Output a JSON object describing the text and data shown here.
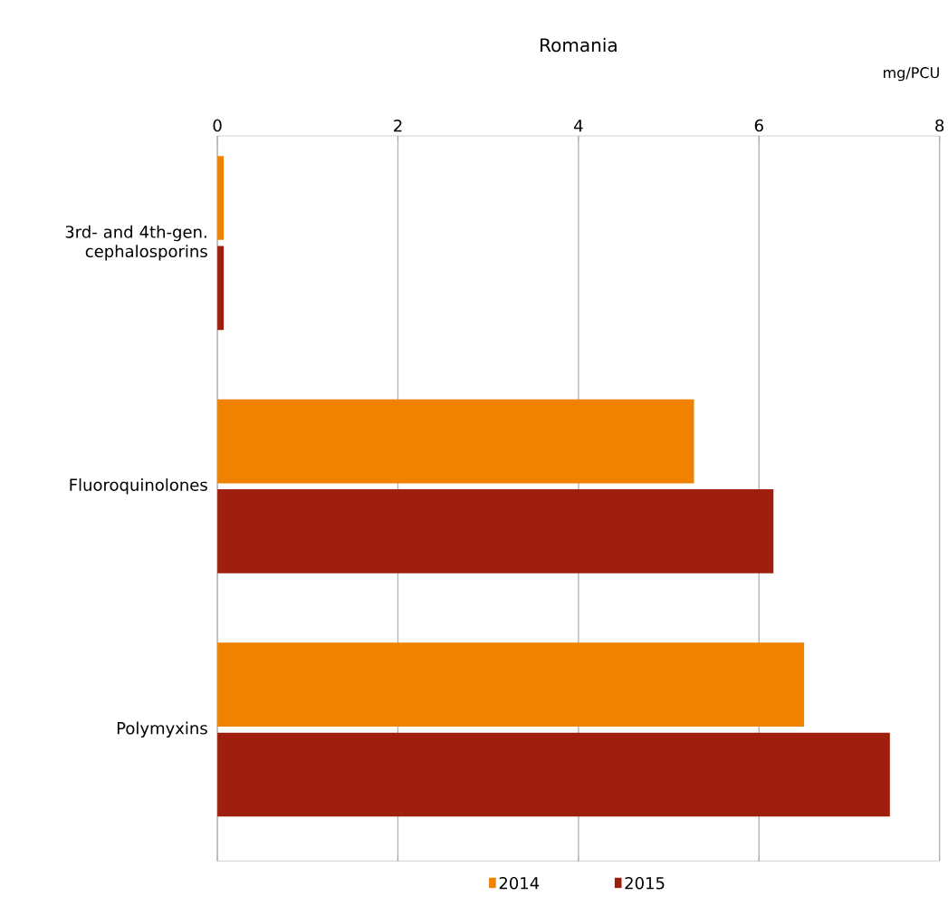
{
  "chart_data": {
    "type": "bar",
    "orientation": "horizontal",
    "title": "Romania",
    "xlabel": "mg/PCU",
    "categories": [
      "3rd- and 4th-gen. cephalosporins",
      "Fluoroquinolones",
      "Polymyxins"
    ],
    "series": [
      {
        "name": "2014",
        "color": "#f08200",
        "values": [
          0.07,
          5.28,
          6.5
        ]
      },
      {
        "name": "2015",
        "color": "#9e1f0e",
        "values": [
          0.07,
          6.16,
          7.45
        ]
      }
    ],
    "xlim": [
      0,
      8
    ],
    "xticks": [
      0,
      2,
      4,
      6,
      8
    ],
    "grid": "x",
    "legend": "bottom"
  }
}
